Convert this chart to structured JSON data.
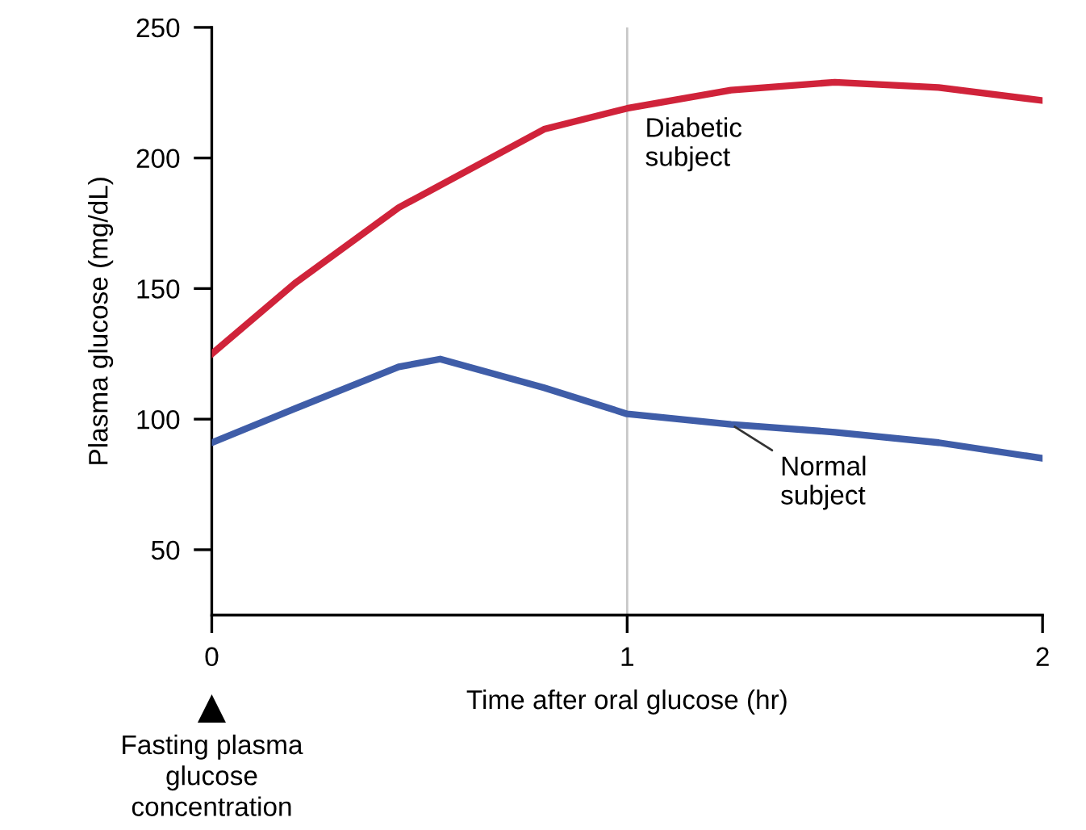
{
  "chart_data": {
    "type": "line",
    "xlabel": "Time after oral glucose (hr)",
    "ylabel": "Plasma glucose (mg/dL)",
    "xlim": [
      0,
      2
    ],
    "xticks": [
      0,
      1,
      2
    ],
    "ylim": [
      25,
      250
    ],
    "yticks": [
      50,
      100,
      150,
      200,
      250
    ],
    "grid": false,
    "marker": "none",
    "line_style": "solid",
    "series": [
      {
        "name": "Diabetic\nsubject",
        "color": "#d0233a",
        "x": [
          0,
          0.2,
          0.45,
          0.8,
          1,
          1.25,
          1.5,
          1.75,
          2
        ],
        "values": [
          125,
          152,
          181,
          211,
          219,
          226,
          229,
          227,
          222
        ]
      },
      {
        "name": "Normal\nsubject",
        "color": "#3f5da8",
        "x": [
          0,
          0.2,
          0.45,
          0.55,
          0.8,
          1,
          1.25,
          1.5,
          1.75,
          2
        ],
        "values": [
          91,
          104,
          120,
          123,
          112,
          102,
          98,
          95,
          91,
          85
        ]
      }
    ],
    "ref_lines": [
      {
        "axis": "x",
        "value": 1,
        "label": null,
        "color": "#c8c8c8"
      }
    ],
    "annotations": [
      "Fasting plasma\nglucose\nconcentration"
    ]
  }
}
